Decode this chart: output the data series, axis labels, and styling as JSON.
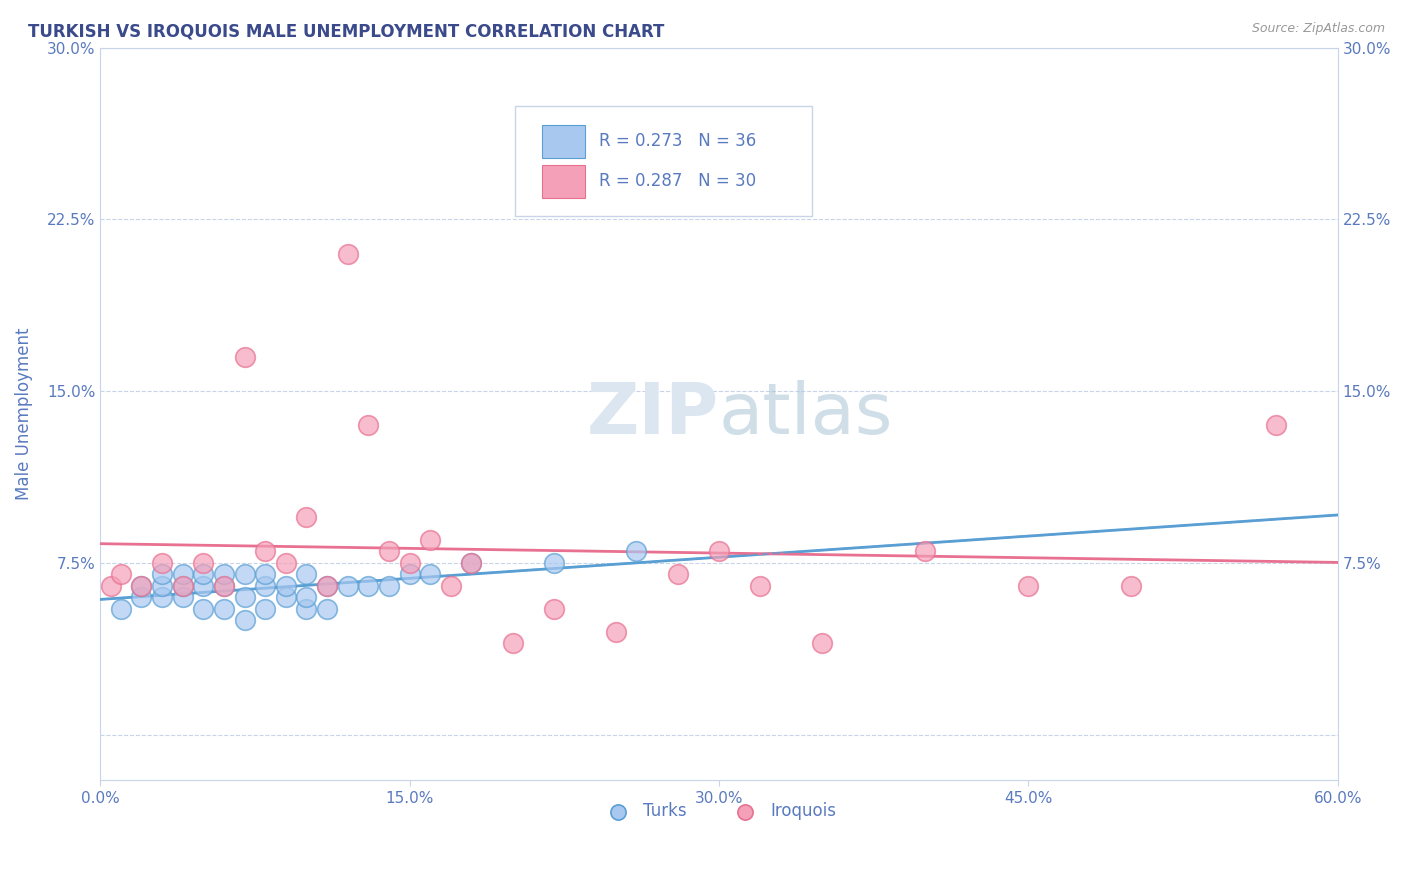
{
  "title": "TURKISH VS IROQUOIS MALE UNEMPLOYMENT CORRELATION CHART",
  "source": "Source: ZipAtlas.com",
  "ylabel": "Male Unemployment",
  "xlim": [
    0.0,
    0.6
  ],
  "ylim": [
    -0.02,
    0.3
  ],
  "xticks": [
    0.0,
    0.15,
    0.3,
    0.45,
    0.6
  ],
  "xtick_labels": [
    "0.0%",
    "15.0%",
    "30.0%",
    "45.0%",
    "60.0%"
  ],
  "yticks": [
    0.0,
    0.075,
    0.15,
    0.225,
    0.3
  ],
  "ytick_labels": [
    "",
    "7.5%",
    "15.0%",
    "22.5%",
    "30.0%"
  ],
  "turks_x": [
    0.01,
    0.02,
    0.02,
    0.03,
    0.03,
    0.03,
    0.04,
    0.04,
    0.04,
    0.05,
    0.05,
    0.05,
    0.06,
    0.06,
    0.06,
    0.07,
    0.07,
    0.07,
    0.08,
    0.08,
    0.08,
    0.09,
    0.09,
    0.1,
    0.1,
    0.1,
    0.11,
    0.11,
    0.12,
    0.13,
    0.14,
    0.15,
    0.16,
    0.18,
    0.22,
    0.26
  ],
  "turks_y": [
    0.055,
    0.06,
    0.065,
    0.06,
    0.065,
    0.07,
    0.06,
    0.065,
    0.07,
    0.055,
    0.065,
    0.07,
    0.055,
    0.065,
    0.07,
    0.05,
    0.06,
    0.07,
    0.055,
    0.065,
    0.07,
    0.06,
    0.065,
    0.055,
    0.06,
    0.07,
    0.055,
    0.065,
    0.065,
    0.065,
    0.065,
    0.07,
    0.07,
    0.075,
    0.075,
    0.08
  ],
  "iroquois_x": [
    0.005,
    0.01,
    0.02,
    0.03,
    0.04,
    0.05,
    0.06,
    0.07,
    0.08,
    0.09,
    0.1,
    0.11,
    0.12,
    0.13,
    0.14,
    0.15,
    0.16,
    0.17,
    0.18,
    0.2,
    0.22,
    0.25,
    0.28,
    0.3,
    0.32,
    0.35,
    0.4,
    0.45,
    0.5,
    0.57
  ],
  "iroquois_y": [
    0.065,
    0.07,
    0.065,
    0.075,
    0.065,
    0.075,
    0.065,
    0.165,
    0.08,
    0.075,
    0.095,
    0.065,
    0.21,
    0.135,
    0.08,
    0.075,
    0.085,
    0.065,
    0.075,
    0.04,
    0.055,
    0.045,
    0.07,
    0.08,
    0.065,
    0.04,
    0.08,
    0.065,
    0.065,
    0.135
  ],
  "turks_color": "#a8c8f0",
  "iroquois_color": "#f4a0b8",
  "turks_edge_color": "#5a9fd4",
  "iroquois_edge_color": "#e87090",
  "turks_line_color": "#5a9fd4",
  "iroquois_line_color": "#e87090",
  "legend_r_turks": "R = 0.273",
  "legend_n_turks": "N = 36",
  "legend_r_iroquois": "R = 0.287",
  "legend_n_iroquois": "N = 30",
  "turks_label": "Turks",
  "iroquois_label": "Iroquois",
  "title_color": "#3a4a8a",
  "axis_color": "#5a7abf",
  "source_color": "#999999",
  "grid_color": "#c8d4e8",
  "watermark_color": "#dce6f0",
  "background_color": "#ffffff"
}
